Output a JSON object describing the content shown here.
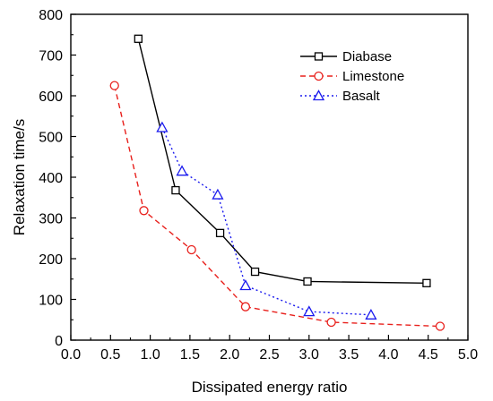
{
  "chart_data": {
    "type": "line",
    "title": "",
    "xlabel": "Dissipated energy ratio",
    "ylabel": "Relaxation time/s",
    "xlim": [
      0.0,
      5.0
    ],
    "ylim": [
      0,
      800
    ],
    "xticks": [
      "0.0",
      "0.5",
      "1.0",
      "1.5",
      "2.0",
      "2.5",
      "3.0",
      "3.5",
      "4.0",
      "4.5",
      "5.0"
    ],
    "yticks": [
      "0",
      "100",
      "200",
      "300",
      "400",
      "500",
      "600",
      "700",
      "800"
    ],
    "grid": false,
    "legend": "top-right",
    "series": [
      {
        "name": "Diabase",
        "color": "#000000",
        "line": "solid",
        "marker": "square",
        "points": [
          [
            0.85,
            740
          ],
          [
            1.32,
            368
          ],
          [
            1.88,
            263
          ],
          [
            2.32,
            168
          ],
          [
            2.98,
            144
          ],
          [
            4.48,
            140
          ]
        ]
      },
      {
        "name": "Limestone",
        "color": "#e8201c",
        "line": "dashed",
        "marker": "circle",
        "points": [
          [
            0.55,
            625
          ],
          [
            0.92,
            318
          ],
          [
            1.52,
            222
          ],
          [
            2.2,
            82
          ],
          [
            3.28,
            44
          ],
          [
            4.65,
            34
          ]
        ]
      },
      {
        "name": "Basalt",
        "color": "#1a1aee",
        "line": "dotted",
        "marker": "triangle",
        "points": [
          [
            1.15,
            522
          ],
          [
            1.4,
            415
          ],
          [
            1.85,
            357
          ],
          [
            2.2,
            134
          ],
          [
            3.0,
            70
          ],
          [
            3.78,
            62
          ]
        ]
      }
    ]
  }
}
